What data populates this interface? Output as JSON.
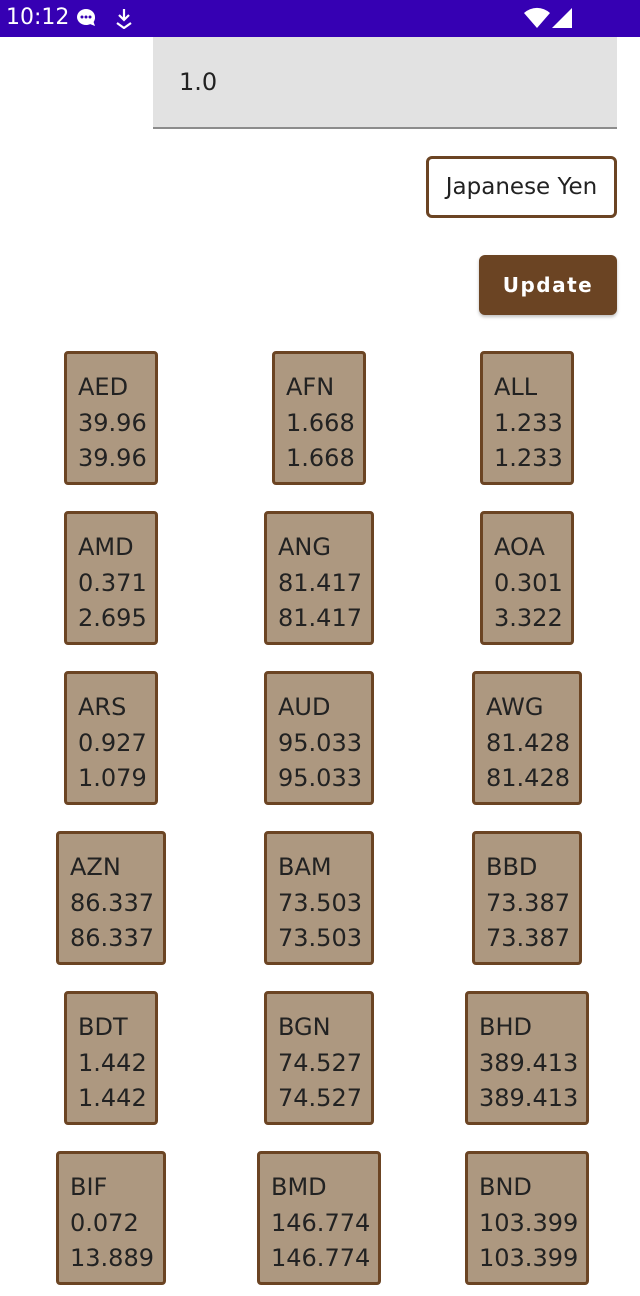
{
  "status_bar": {
    "time": "10:12",
    "icons": [
      "notification-chat-icon",
      "notification-download-icon",
      "wifi-icon",
      "cellular-signal-icon"
    ]
  },
  "converter": {
    "amount": "1.0",
    "currency": "Japanese Yen",
    "update_label": "Update"
  },
  "colors": {
    "status_bar": "#3600b3",
    "accent": "#6b4423",
    "card_fill": "#ad9880",
    "field_bg": "#e2e2e2"
  },
  "rates": [
    {
      "code": "AED",
      "rate": "39.96",
      "inverse": "39.96"
    },
    {
      "code": "AFN",
      "rate": "1.668",
      "inverse": "1.668"
    },
    {
      "code": "ALL",
      "rate": "1.233",
      "inverse": "1.233"
    },
    {
      "code": "AMD",
      "rate": "0.371",
      "inverse": "2.695"
    },
    {
      "code": "ANG",
      "rate": "81.417",
      "inverse": "81.417"
    },
    {
      "code": "AOA",
      "rate": "0.301",
      "inverse": "3.322"
    },
    {
      "code": "ARS",
      "rate": "0.927",
      "inverse": "1.079"
    },
    {
      "code": "AUD",
      "rate": "95.033",
      "inverse": "95.033"
    },
    {
      "code": "AWG",
      "rate": "81.428",
      "inverse": "81.428"
    },
    {
      "code": "AZN",
      "rate": "86.337",
      "inverse": "86.337"
    },
    {
      "code": "BAM",
      "rate": "73.503",
      "inverse": "73.503"
    },
    {
      "code": "BBD",
      "rate": "73.387",
      "inverse": "73.387"
    },
    {
      "code": "BDT",
      "rate": "1.442",
      "inverse": "1.442"
    },
    {
      "code": "BGN",
      "rate": "74.527",
      "inverse": "74.527"
    },
    {
      "code": "BHD",
      "rate": "389.413",
      "inverse": "389.413"
    },
    {
      "code": "BIF",
      "rate": "0.072",
      "inverse": "13.889"
    },
    {
      "code": "BMD",
      "rate": "146.774",
      "inverse": "146.774"
    },
    {
      "code": "BND",
      "rate": "103.399",
      "inverse": "103.399"
    }
  ]
}
